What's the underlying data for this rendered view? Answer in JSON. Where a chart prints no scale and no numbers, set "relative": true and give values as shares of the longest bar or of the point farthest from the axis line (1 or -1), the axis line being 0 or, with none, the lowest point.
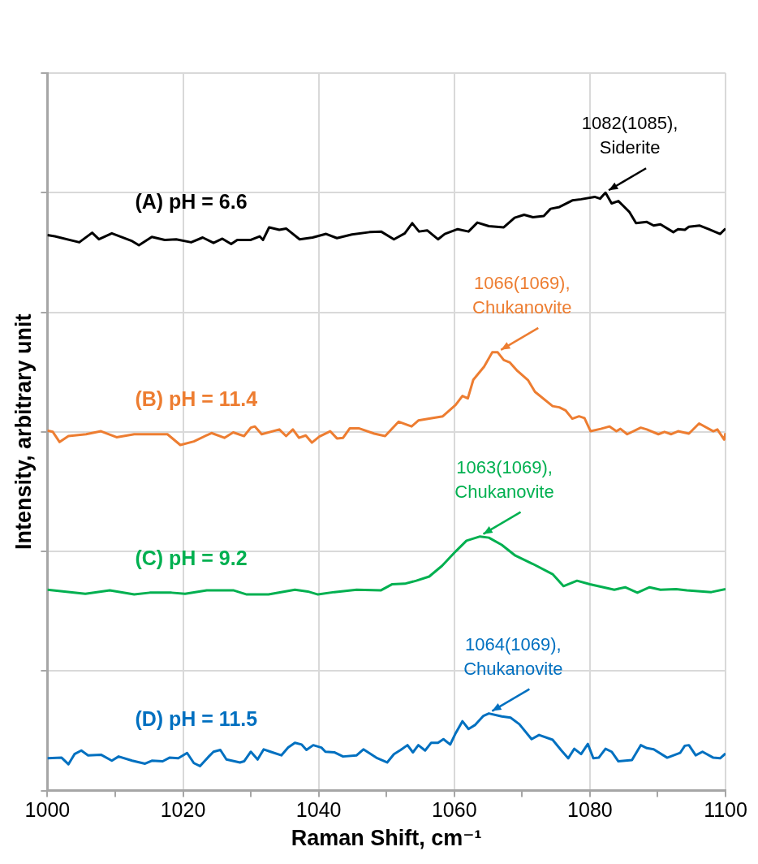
{
  "chart_data": {
    "type": "line",
    "relative": true,
    "xlabel": "Raman Shift, cm⁻¹",
    "ylabel": "Intensity, arbitrary unit",
    "xlim": [
      1000,
      1100
    ],
    "xticks": [
      1000,
      {
        "value": 1010,
        "label": null
      },
      1020,
      {
        "value": 1030,
        "label": null
      },
      1040,
      {
        "value": 1050,
        "label": null
      },
      1060,
      {
        "value": 1070,
        "label": null
      },
      1080,
      {
        "value": 1090,
        "label": null
      },
      1100
    ],
    "grid": true,
    "legend": false,
    "series": [
      {
        "name": "(A) pH = 6.6",
        "color": "#000000",
        "x": [
          1000,
          1001.1,
          1004.7,
          1006.6,
          1007.6,
          1009.5,
          1012.5,
          1013.5,
          1015.4,
          1017.3,
          1019,
          1021.2,
          1022.9,
          1024.5,
          1025.8,
          1027.1,
          1028,
          1030,
          1031.3,
          1031.8,
          1032.7,
          1034.2,
          1035.2,
          1037.2,
          1039.1,
          1041.1,
          1042.7,
          1044.9,
          1047.5,
          1049.2,
          1051.1,
          1052.7,
          1053.8,
          1054.8,
          1056,
          1057.6,
          1058.6,
          1060.5,
          1062.1,
          1063.4,
          1065.1,
          1067.3,
          1068.9,
          1070.3,
          1071.6,
          1073.2,
          1074.2,
          1075.5,
          1077.4,
          1078.7,
          1080.7,
          1081.5,
          1082.3,
          1083.2,
          1084.2,
          1085.8,
          1086.8,
          1088.4,
          1089.4,
          1090.4,
          1092.3,
          1093,
          1094,
          1094.6,
          1096.2,
          1097.5,
          1099.2,
          1100
        ],
        "values": [
          0.929,
          0.927,
          0.917,
          0.933,
          0.922,
          0.932,
          0.919,
          0.912,
          0.926,
          0.921,
          0.922,
          0.917,
          0.925,
          0.916,
          0.923,
          0.914,
          0.921,
          0.921,
          0.927,
          0.921,
          0.942,
          0.938,
          0.94,
          0.922,
          0.925,
          0.931,
          0.924,
          0.93,
          0.934,
          0.935,
          0.922,
          0.932,
          0.949,
          0.935,
          0.937,
          0.922,
          0.931,
          0.939,
          0.935,
          0.95,
          0.944,
          0.942,
          0.958,
          0.963,
          0.959,
          0.961,
          0.973,
          0.976,
          0.987,
          0.989,
          0.993,
          0.99,
          1,
          0.982,
          0.986,
          0.968,
          0.949,
          0.951,
          0.945,
          0.947,
          0.934,
          0.939,
          0.938,
          0.943,
          0.945,
          0.939,
          0.931,
          0.94
        ]
      },
      {
        "name": "(B) pH = 11.4",
        "color": "#ed7d31",
        "x": [
          1000,
          1000.8,
          1001.8,
          1003.1,
          1005.7,
          1007.9,
          1010.2,
          1012.8,
          1015.7,
          1017.7,
          1019.6,
          1021.6,
          1024.2,
          1026.1,
          1027.4,
          1029,
          1030,
          1030.6,
          1031.6,
          1034.2,
          1035.2,
          1036.2,
          1037.1,
          1038.1,
          1039,
          1040.1,
          1041.7,
          1042.7,
          1043.6,
          1044.6,
          1045.9,
          1048.2,
          1049.8,
          1051.8,
          1053.7,
          1054.7,
          1056.3,
          1058.3,
          1060.2,
          1061.2,
          1062,
          1062.8,
          1064.4,
          1065.6,
          1066.4,
          1067.3,
          1068.2,
          1069.3,
          1070.9,
          1071.9,
          1074.5,
          1075.5,
          1076.4,
          1077.4,
          1078.4,
          1079.2,
          1080.1,
          1081.6,
          1082.9,
          1083.9,
          1084.5,
          1085.5,
          1087.5,
          1088.4,
          1090.1,
          1091,
          1092,
          1093,
          1094.6,
          1096.1,
          1098.2,
          1098.8,
          1099.8,
          1100
        ],
        "values": [
          0.602,
          0.6,
          0.583,
          0.593,
          0.596,
          0.601,
          0.591,
          0.596,
          0.596,
          0.596,
          0.578,
          0.584,
          0.598,
          0.59,
          0.599,
          0.593,
          0.607,
          0.609,
          0.596,
          0.604,
          0.593,
          0.604,
          0.59,
          0.594,
          0.582,
          0.592,
          0.601,
          0.589,
          0.59,
          0.606,
          0.606,
          0.597,
          0.593,
          0.617,
          0.609,
          0.619,
          0.622,
          0.626,
          0.645,
          0.66,
          0.656,
          0.687,
          0.709,
          0.733,
          0.733,
          0.72,
          0.716,
          0.702,
          0.686,
          0.667,
          0.643,
          0.641,
          0.636,
          0.622,
          0.626,
          0.623,
          0.601,
          0.605,
          0.609,
          0.601,
          0.605,
          0.596,
          0.607,
          0.604,
          0.596,
          0.6,
          0.596,
          0.601,
          0.597,
          0.614,
          0.601,
          0.604,
          0.587,
          0.598
        ]
      },
      {
        "name": "(C) pH = 9.2",
        "color": "#00b050",
        "x": [
          1000,
          1005.6,
          1009.2,
          1012.8,
          1015.1,
          1018.3,
          1020.3,
          1023.5,
          1027.4,
          1029.4,
          1032.6,
          1036.5,
          1038.4,
          1039.9,
          1042.3,
          1045.6,
          1049.2,
          1050.8,
          1052.7,
          1054.4,
          1056.3,
          1058.2,
          1060.2,
          1061.8,
          1063.8,
          1065.1,
          1067,
          1069,
          1071.6,
          1074.5,
          1076.1,
          1078.1,
          1080,
          1081.6,
          1083.6,
          1085.2,
          1087,
          1088.8,
          1090.4,
          1092.7,
          1094.3,
          1097.9,
          1100
        ],
        "values": [
          0.336,
          0.329,
          0.335,
          0.328,
          0.331,
          0.331,
          0.329,
          0.335,
          0.335,
          0.328,
          0.328,
          0.336,
          0.333,
          0.328,
          0.332,
          0.336,
          0.335,
          0.345,
          0.346,
          0.351,
          0.358,
          0.376,
          0.4,
          0.418,
          0.425,
          0.423,
          0.411,
          0.393,
          0.379,
          0.362,
          0.342,
          0.351,
          0.345,
          0.341,
          0.336,
          0.34,
          0.331,
          0.34,
          0.336,
          0.337,
          0.335,
          0.332,
          0.337
        ]
      },
      {
        "name": "(D) pH = 11.5",
        "color": "#0070c0",
        "x": [
          1000,
          1002.1,
          1003.1,
          1004,
          1005,
          1006,
          1007.9,
          1009.5,
          1010.5,
          1012.5,
          1014.4,
          1015.4,
          1017,
          1018,
          1019.3,
          1020.6,
          1021.6,
          1022.5,
          1023.8,
          1024.5,
          1025.5,
          1026.4,
          1028.4,
          1029,
          1030,
          1031,
          1031.9,
          1032.9,
          1034.5,
          1035.5,
          1036.5,
          1037.5,
          1038.2,
          1039.2,
          1040.4,
          1041,
          1042.3,
          1043.6,
          1045.6,
          1046.6,
          1048.5,
          1050.1,
          1051.1,
          1052.1,
          1053.1,
          1053.9,
          1054.7,
          1055.7,
          1056.6,
          1057.6,
          1058.4,
          1059.4,
          1060.2,
          1061.2,
          1062.1,
          1063.1,
          1064.3,
          1065.1,
          1067,
          1068.3,
          1069.6,
          1071.4,
          1072.5,
          1074.5,
          1075.8,
          1076.8,
          1077.7,
          1078.7,
          1079.7,
          1080.5,
          1081.3,
          1082.3,
          1083.2,
          1084.2,
          1086.2,
          1087.5,
          1088.4,
          1089.4,
          1091.4,
          1093.3,
          1094,
          1094.6,
          1095.6,
          1096.6,
          1098.2,
          1099.2,
          1100
        ],
        "values": [
          0.054,
          0.055,
          0.044,
          0.061,
          0.067,
          0.059,
          0.06,
          0.05,
          0.057,
          0.05,
          0.045,
          0.05,
          0.049,
          0.055,
          0.054,
          0.063,
          0.046,
          0.041,
          0.057,
          0.065,
          0.068,
          0.052,
          0.047,
          0.049,
          0.065,
          0.052,
          0.069,
          0.065,
          0.059,
          0.072,
          0.08,
          0.077,
          0.068,
          0.076,
          0.072,
          0.065,
          0.064,
          0.057,
          0.059,
          0.069,
          0.055,
          0.047,
          0.061,
          0.068,
          0.076,
          0.064,
          0.076,
          0.067,
          0.08,
          0.08,
          0.086,
          0.077,
          0.096,
          0.116,
          0.103,
          0.11,
          0.125,
          0.129,
          0.124,
          0.122,
          0.111,
          0.086,
          0.093,
          0.085,
          0.067,
          0.054,
          0.07,
          0.061,
          0.078,
          0.054,
          0.055,
          0.07,
          0.065,
          0.049,
          0.051,
          0.076,
          0.071,
          0.069,
          0.055,
          0.063,
          0.075,
          0.076,
          0.059,
          0.065,
          0.055,
          0.054,
          0.062
        ]
      }
    ],
    "annotations": [
      {
        "text": "1082(1085), Siderite",
        "x": 1082.3,
        "y": 1
      },
      {
        "text": "1066(1069), Chukanovite",
        "x": 1066.4,
        "y": 0.733
      },
      {
        "text": "1063(1069), Chukanovite",
        "x": 1063.8,
        "y": 0.425
      },
      {
        "text": "1064(1069), Chukanovite",
        "x": 1065.1,
        "y": 0.129
      }
    ]
  }
}
